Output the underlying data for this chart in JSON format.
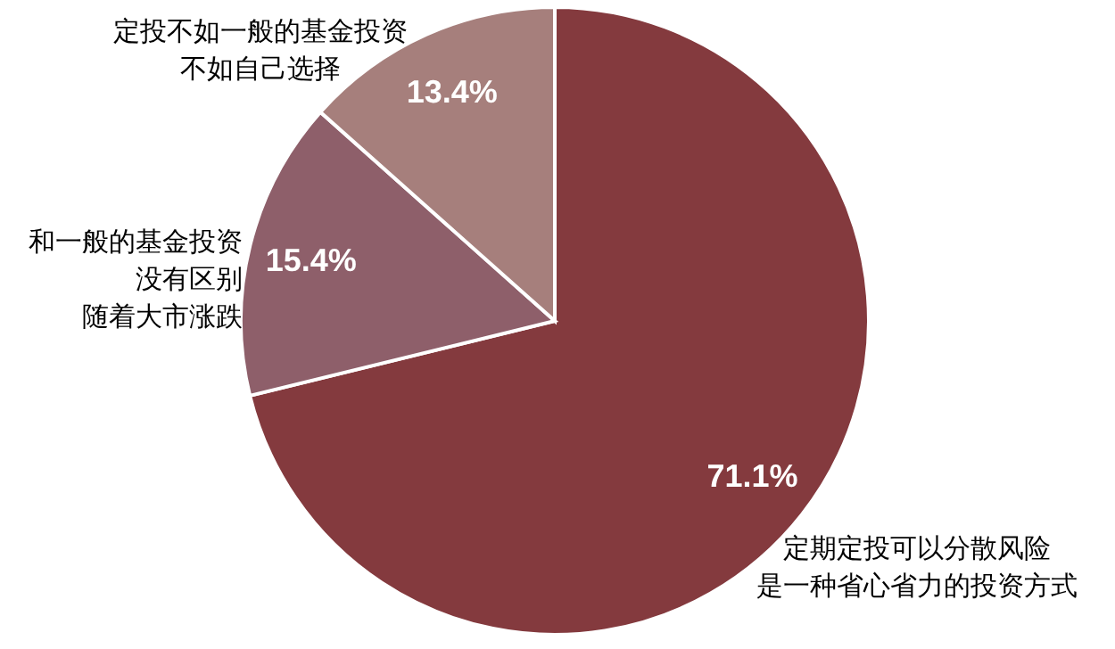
{
  "chart_data": {
    "type": "pie",
    "categories": [
      "定期定投可以分散风险是一种省心省力的投资方式",
      "和一般的基金投资没有区别随着大市涨跌",
      "定投不如一般的基金投资不如自己选择"
    ],
    "values": [
      71.1,
      15.4,
      13.4
    ],
    "value_labels": [
      "71.1%",
      "15.4%",
      "13.4%"
    ],
    "colors": [
      "#843a3e",
      "#8e5f6a",
      "#a67f7c"
    ]
  }
}
